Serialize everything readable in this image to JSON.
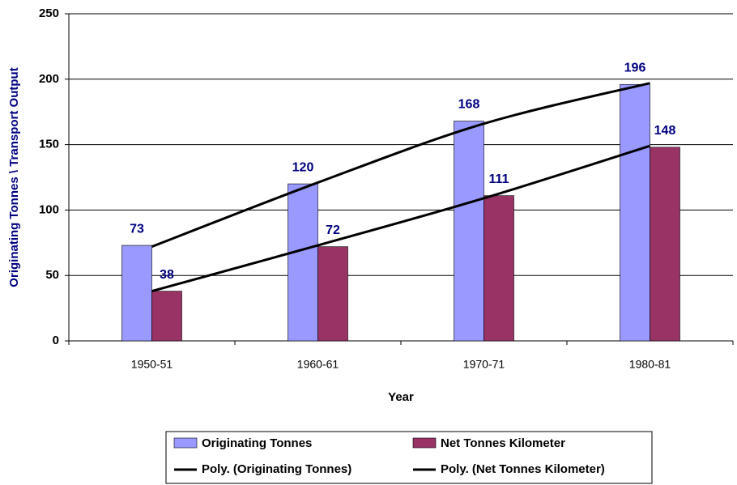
{
  "chart_data": {
    "type": "bar",
    "y_label": "Originating Tonnes \\ Transport Output",
    "x_label": "Year",
    "categories": [
      "1950-51",
      "1960-61",
      "1970-71",
      "1980-81"
    ],
    "series": [
      {
        "name": "Originating Tonnes",
        "color": "#9999ff",
        "values": [
          73,
          120,
          168,
          196
        ]
      },
      {
        "name": "Net Tonnes Kilometer",
        "color": "#993366",
        "values": [
          38,
          72,
          111,
          148
        ]
      }
    ],
    "trendlines": [
      {
        "name": "Poly. (Originating Tonnes)",
        "color": "#000000",
        "values": [
          72,
          121,
          166,
          197
        ]
      },
      {
        "name": "Poly. (Net Tonnes Kilometer)",
        "color": "#000000",
        "values": [
          38,
          73,
          109,
          149
        ]
      }
    ],
    "ylim": [
      0,
      250
    ],
    "yticks": [
      0,
      50,
      100,
      150,
      200,
      250
    ],
    "grid": true
  }
}
